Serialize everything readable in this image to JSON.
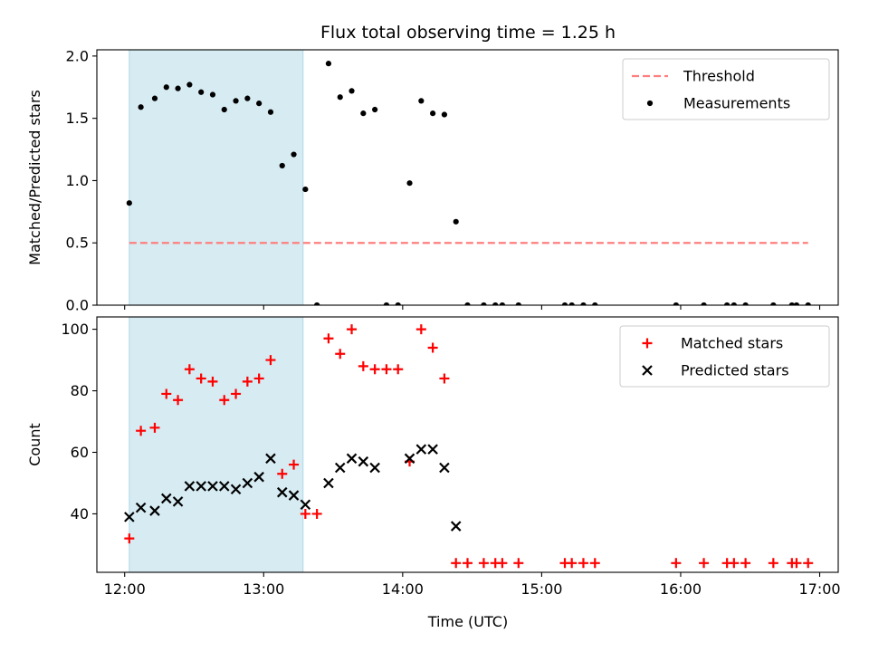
{
  "figure": {
    "title": "Flux total observing time = 1.25 h",
    "xlabel": "Time (UTC)"
  },
  "chart_data": [
    {
      "type": "scatter",
      "panel": "top",
      "ylabel": "Matched/Predicted stars",
      "xlim": [
        "11:48",
        "17:08"
      ],
      "ylim": [
        0,
        2.05
      ],
      "y_ticks": [
        "0.0",
        "0.5",
        "1.0",
        "1.5",
        "2.0"
      ],
      "x_ticks": [
        "12:00",
        "13:00",
        "14:00",
        "15:00",
        "16:00",
        "17:00"
      ],
      "x_tick_labels_shown": false,
      "shaded_region": {
        "x_start": "12:02",
        "x_end": "13:17",
        "color": "#add8e6"
      },
      "legend": {
        "position": "top-right",
        "entries": [
          "Threshold",
          "Measurements"
        ]
      },
      "threshold": {
        "name": "Threshold",
        "y": 0.5,
        "x_start": "12:02",
        "x_end": "16:55",
        "color": "#ff7f7f",
        "style": "dashed"
      },
      "series": [
        {
          "name": "Measurements",
          "color": "#000000",
          "marker": "dot",
          "points": [
            [
              "12:02",
              0.82
            ],
            [
              "12:07",
              1.59
            ],
            [
              "12:13",
              1.66
            ],
            [
              "12:18",
              1.75
            ],
            [
              "12:23",
              1.74
            ],
            [
              "12:28",
              1.77
            ],
            [
              "12:33",
              1.71
            ],
            [
              "12:38",
              1.69
            ],
            [
              "12:43",
              1.57
            ],
            [
              "12:48",
              1.64
            ],
            [
              "12:53",
              1.66
            ],
            [
              "12:58",
              1.62
            ],
            [
              "13:03",
              1.55
            ],
            [
              "13:08",
              1.12
            ],
            [
              "13:13",
              1.21
            ],
            [
              "13:18",
              0.93
            ],
            [
              "13:23",
              0.0
            ],
            [
              "13:28",
              1.94
            ],
            [
              "13:33",
              1.67
            ],
            [
              "13:38",
              1.72
            ],
            [
              "13:43",
              1.54
            ],
            [
              "13:48",
              1.57
            ],
            [
              "13:53",
              0.0
            ],
            [
              "13:58",
              0.0
            ],
            [
              "14:03",
              0.98
            ],
            [
              "14:08",
              1.64
            ],
            [
              "14:13",
              1.54
            ],
            [
              "14:18",
              1.53
            ],
            [
              "14:23",
              0.67
            ],
            [
              "14:28",
              0.0
            ],
            [
              "14:35",
              0.0
            ],
            [
              "14:40",
              0.0
            ],
            [
              "14:43",
              0.0
            ],
            [
              "14:50",
              0.0
            ],
            [
              "15:10",
              0.0
            ],
            [
              "15:13",
              0.0
            ],
            [
              "15:18",
              0.0
            ],
            [
              "15:23",
              0.0
            ],
            [
              "15:58",
              0.0
            ],
            [
              "16:10",
              0.0
            ],
            [
              "16:20",
              0.0
            ],
            [
              "16:23",
              0.0
            ],
            [
              "16:28",
              0.0
            ],
            [
              "16:40",
              0.0
            ],
            [
              "16:48",
              0.0
            ],
            [
              "16:50",
              0.0
            ],
            [
              "16:55",
              0.0
            ]
          ]
        }
      ]
    },
    {
      "type": "scatter",
      "panel": "bottom",
      "ylabel": "Count",
      "xlim": [
        "11:48",
        "17:08"
      ],
      "ylim": [
        21,
        104
      ],
      "y_ticks": [
        "40",
        "60",
        "80",
        "100"
      ],
      "x_ticks": [
        "12:00",
        "13:00",
        "14:00",
        "15:00",
        "16:00",
        "17:00"
      ],
      "shaded_region": {
        "x_start": "12:02",
        "x_end": "13:17",
        "color": "#add8e6"
      },
      "legend": {
        "position": "top-right",
        "entries": [
          "Matched stars",
          "Predicted stars"
        ]
      },
      "series": [
        {
          "name": "Matched stars",
          "color": "#ff0000",
          "marker": "plus",
          "points": [
            [
              "12:02",
              32
            ],
            [
              "12:07",
              67
            ],
            [
              "12:13",
              68
            ],
            [
              "12:18",
              79
            ],
            [
              "12:23",
              77
            ],
            [
              "12:28",
              87
            ],
            [
              "12:33",
              84
            ],
            [
              "12:38",
              83
            ],
            [
              "12:43",
              77
            ],
            [
              "12:48",
              79
            ],
            [
              "12:53",
              83
            ],
            [
              "12:58",
              84
            ],
            [
              "13:03",
              90
            ],
            [
              "13:08",
              53
            ],
            [
              "13:13",
              56
            ],
            [
              "13:18",
              40
            ],
            [
              "13:23",
              40
            ],
            [
              "13:28",
              97
            ],
            [
              "13:33",
              92
            ],
            [
              "13:38",
              100
            ],
            [
              "13:43",
              88
            ],
            [
              "13:48",
              87
            ],
            [
              "13:53",
              87
            ],
            [
              "13:58",
              87
            ],
            [
              "14:03",
              57
            ],
            [
              "14:08",
              100
            ],
            [
              "14:13",
              94
            ],
            [
              "14:18",
              84
            ],
            [
              "14:23",
              24
            ],
            [
              "14:28",
              24
            ],
            [
              "14:35",
              24
            ],
            [
              "14:40",
              24
            ],
            [
              "14:43",
              24
            ],
            [
              "14:50",
              24
            ],
            [
              "15:10",
              24
            ],
            [
              "15:13",
              24
            ],
            [
              "15:18",
              24
            ],
            [
              "15:23",
              24
            ],
            [
              "15:58",
              24
            ],
            [
              "16:10",
              24
            ],
            [
              "16:20",
              24
            ],
            [
              "16:23",
              24
            ],
            [
              "16:28",
              24
            ],
            [
              "16:40",
              24
            ],
            [
              "16:48",
              24
            ],
            [
              "16:50",
              24
            ],
            [
              "16:55",
              24
            ]
          ]
        },
        {
          "name": "Predicted stars",
          "color": "#000000",
          "marker": "cross",
          "points": [
            [
              "12:02",
              39
            ],
            [
              "12:07",
              42
            ],
            [
              "12:13",
              41
            ],
            [
              "12:18",
              45
            ],
            [
              "12:23",
              44
            ],
            [
              "12:28",
              49
            ],
            [
              "12:33",
              49
            ],
            [
              "12:38",
              49
            ],
            [
              "12:43",
              49
            ],
            [
              "12:48",
              48
            ],
            [
              "12:53",
              50
            ],
            [
              "12:58",
              52
            ],
            [
              "13:03",
              58
            ],
            [
              "13:08",
              47
            ],
            [
              "13:13",
              46
            ],
            [
              "13:18",
              43
            ],
            [
              "13:28",
              50
            ],
            [
              "13:33",
              55
            ],
            [
              "13:38",
              58
            ],
            [
              "13:43",
              57
            ],
            [
              "13:48",
              55
            ],
            [
              "14:03",
              58
            ],
            [
              "14:08",
              61
            ],
            [
              "14:13",
              61
            ],
            [
              "14:18",
              55
            ],
            [
              "14:23",
              36
            ]
          ]
        }
      ]
    }
  ]
}
